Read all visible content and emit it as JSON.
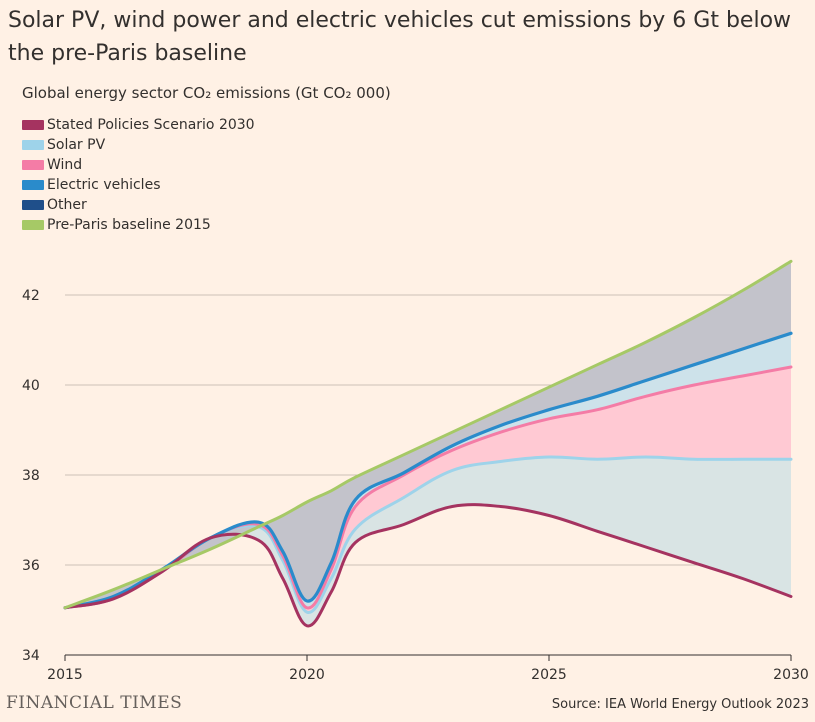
{
  "header": {
    "title": "Solar PV, wind power and electric vehicles cut emissions by 6 Gt below the pre-Paris baseline",
    "subtitle": "Global energy sector CO₂ emissions (Gt CO₂ 000)"
  },
  "footer": {
    "brand": "FINANCIAL TIMES",
    "source": "Source: IEA World Energy Outlook 2023"
  },
  "colors": {
    "background": "#fff1e5",
    "steps": "#a53360",
    "solar": "#9ed3ea",
    "wind": "#f47ca6",
    "ev": "#2a8bcb",
    "other": "#1f4f8a",
    "baseline": "#a6c966",
    "fill_solar": "#d9e4e4",
    "fill_wind": "#ffc9d3",
    "fill_ev": "#cde2ea",
    "fill_other": "#c3c3cb"
  },
  "chart_data": {
    "type": "area",
    "title": "Solar PV, wind power and electric vehicles cut emissions by 6 Gt below the pre-Paris baseline",
    "ylabel": "Global energy sector CO₂ emissions (Gt CO₂ 000)",
    "xlabel": "",
    "xlim": [
      2015,
      2030
    ],
    "ylim": [
      34,
      43
    ],
    "x_ticks": [
      2015,
      2020,
      2025,
      2030
    ],
    "y_ticks": [
      34,
      36,
      38,
      40,
      42
    ],
    "legend": [
      {
        "key": "steps",
        "name": "Stated Policies Scenario 2030"
      },
      {
        "key": "solar",
        "name": "Solar PV"
      },
      {
        "key": "wind",
        "name": "Wind"
      },
      {
        "key": "ev",
        "name": "Electric vehicles"
      },
      {
        "key": "other",
        "name": "Other"
      },
      {
        "key": "baseline",
        "name": "Pre-Paris baseline 2015"
      }
    ],
    "x": [
      2015,
      2016,
      2017,
      2018,
      2019,
      2019.5,
      2020,
      2020.5,
      2021,
      2022,
      2023,
      2024,
      2025,
      2026,
      2027,
      2028,
      2029,
      2030
    ],
    "series": [
      {
        "key": "steps",
        "name": "Stated Policies Scenario 2030",
        "values": [
          35.05,
          35.25,
          35.85,
          36.6,
          36.55,
          35.7,
          34.65,
          35.4,
          36.5,
          36.9,
          37.3,
          37.3,
          37.1,
          36.75,
          36.4,
          36.05,
          35.7,
          35.3
        ]
      },
      {
        "key": "solar",
        "name": "Solar PV",
        "values": [
          35.05,
          35.25,
          35.85,
          36.6,
          36.85,
          36.1,
          34.95,
          35.7,
          36.8,
          37.5,
          38.1,
          38.3,
          38.4,
          38.35,
          38.4,
          38.35,
          38.35,
          38.35
        ]
      },
      {
        "key": "wind",
        "name": "Wind",
        "values": [
          35.05,
          35.25,
          35.85,
          36.6,
          36.9,
          36.2,
          35.05,
          35.9,
          37.3,
          38.0,
          38.55,
          38.95,
          39.25,
          39.45,
          39.75,
          40.0,
          40.2,
          40.4
        ]
      },
      {
        "key": "ev",
        "name": "Electric vehicles",
        "values": [
          35.05,
          35.3,
          35.9,
          36.6,
          36.95,
          36.3,
          35.2,
          36.05,
          37.45,
          38.05,
          38.65,
          39.1,
          39.45,
          39.75,
          40.1,
          40.45,
          40.8,
          41.15
        ]
      },
      {
        "key": "baseline",
        "name": "Pre-Paris baseline 2015",
        "values": [
          35.05,
          35.45,
          35.9,
          36.35,
          36.85,
          37.1,
          37.4,
          37.65,
          37.95,
          38.45,
          38.95,
          39.45,
          39.95,
          40.45,
          40.95,
          41.5,
          42.1,
          42.75
        ]
      }
    ]
  }
}
